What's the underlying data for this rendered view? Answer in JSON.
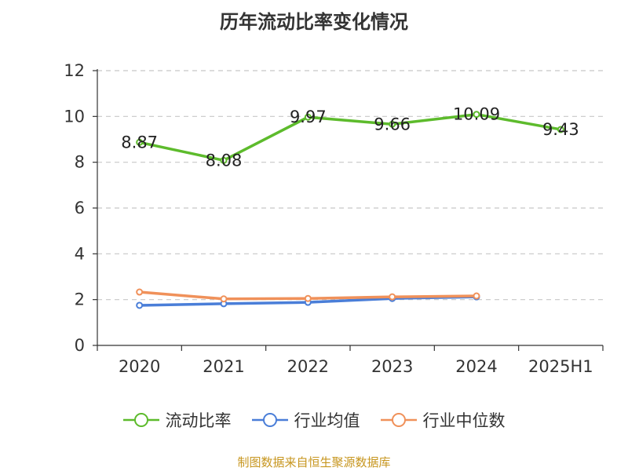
{
  "chart_data": {
    "type": "line",
    "title": "历年流动比率变化情况",
    "categories": [
      "2020",
      "2021",
      "2022",
      "2023",
      "2024",
      "2025H1"
    ],
    "yticks": [
      "0",
      "2",
      "4",
      "6",
      "8",
      "10",
      "12"
    ],
    "ylim": [
      0,
      12
    ],
    "grid": true,
    "legend_position": "bottom",
    "series": [
      {
        "name": "流动比率",
        "color": "#5dbb2c",
        "values": [
          8.87,
          8.08,
          9.97,
          9.66,
          10.09,
          9.43
        ],
        "labels": [
          "8.87",
          "8.08",
          "9.97",
          "9.66",
          "10.09",
          "9.43"
        ]
      },
      {
        "name": "行业均值",
        "color": "#4a7ed8",
        "values": [
          1.75,
          1.82,
          1.88,
          2.05,
          2.12,
          null
        ]
      },
      {
        "name": "行业中位数",
        "color": "#f0915a",
        "values": [
          2.33,
          2.03,
          2.05,
          2.12,
          2.16,
          null
        ]
      }
    ]
  },
  "source_note": "制图数据来自恒生聚源数据库"
}
